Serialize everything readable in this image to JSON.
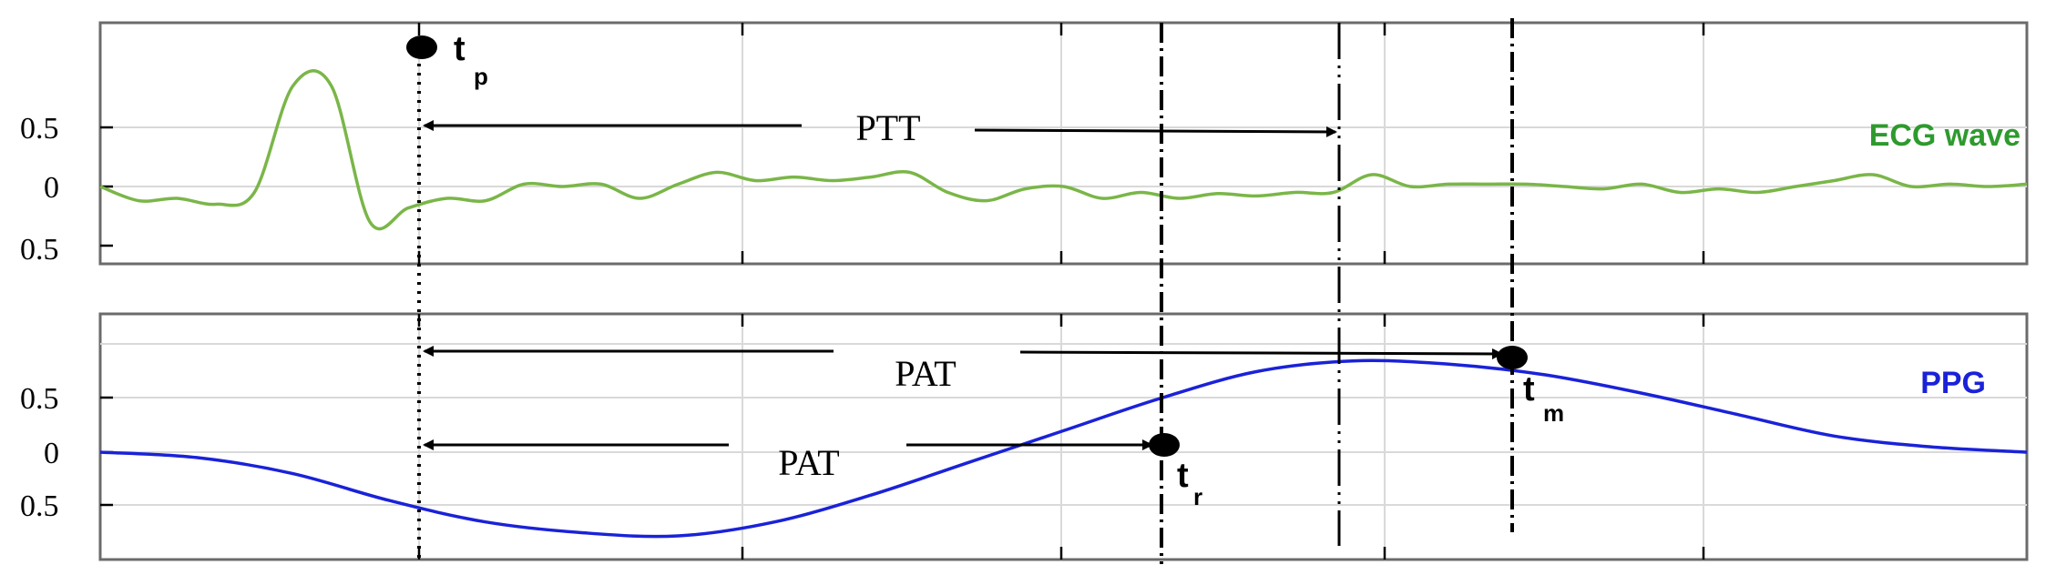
{
  "chart_data": [
    {
      "type": "line",
      "panel": "ecg",
      "series": [
        {
          "name": "ECG wave",
          "color": "#7ab648",
          "x": [
            0,
            2,
            4,
            6,
            8,
            10,
            12,
            14,
            16,
            18,
            20,
            22,
            24,
            26,
            28,
            30,
            32,
            34,
            36,
            38,
            40,
            42,
            44,
            46,
            48,
            50,
            52,
            54,
            56,
            58,
            60,
            62,
            64,
            66,
            68,
            70,
            72,
            74,
            76,
            78,
            80,
            82,
            84,
            86,
            88,
            90,
            92,
            94,
            96,
            98,
            100
          ],
          "y": [
            0,
            -0.12,
            -0.1,
            -0.15,
            -0.05,
            0.85,
            0.85,
            -0.3,
            -0.18,
            -0.1,
            -0.12,
            0.02,
            0.0,
            0.02,
            -0.1,
            0.02,
            0.12,
            0.05,
            0.08,
            0.05,
            0.08,
            0.12,
            -0.05,
            -0.12,
            -0.02,
            0.0,
            -0.1,
            -0.05,
            -0.1,
            -0.06,
            -0.08,
            -0.05,
            -0.05,
            0.1,
            0.0,
            0.02,
            0.02,
            0.02,
            0.0,
            -0.02,
            0.02,
            -0.05,
            -0.02,
            -0.05,
            0.0,
            0.05,
            0.1,
            0.0,
            0.02,
            0.0,
            0.02
          ]
        }
      ],
      "yticks": [
        "0.5",
        "0",
        "0.5"
      ],
      "ylim": [
        -0.55,
        1.2
      ],
      "xlim": [
        0,
        100
      ]
    },
    {
      "type": "line",
      "panel": "ppg",
      "series": [
        {
          "name": "PPG",
          "color": "#1a22d8",
          "x": [
            0,
            5,
            10,
            15,
            20,
            25,
            30,
            35,
            40,
            45,
            50,
            55,
            60,
            65,
            70,
            75,
            80,
            85,
            90,
            95,
            100
          ],
          "y": [
            0,
            -0.05,
            -0.2,
            -0.45,
            -0.65,
            -0.75,
            -0.78,
            -0.65,
            -0.4,
            -0.1,
            0.2,
            0.5,
            0.75,
            0.85,
            0.82,
            0.72,
            0.55,
            0.35,
            0.15,
            0.05,
            0.0
          ]
        }
      ],
      "yticks": [
        "0.5",
        "0",
        "0.5"
      ],
      "ylim": [
        -1.0,
        1.2
      ],
      "xlim": [
        0,
        100
      ]
    }
  ],
  "annotations": {
    "ptt_label": "PTT",
    "pat_upper_label": "PAT",
    "pat_lower_label": "PAT",
    "tp": {
      "main": "t",
      "sub": "p"
    },
    "tr": {
      "main": "t",
      "sub": "r"
    },
    "tm": {
      "main": "t",
      "sub": "m"
    }
  },
  "colors": {
    "ecg": "#7ab648",
    "ecg_label": "#2e9a2e",
    "ppg": "#1a22d8",
    "grid": "#d9d9d9",
    "axis": "#555555"
  }
}
